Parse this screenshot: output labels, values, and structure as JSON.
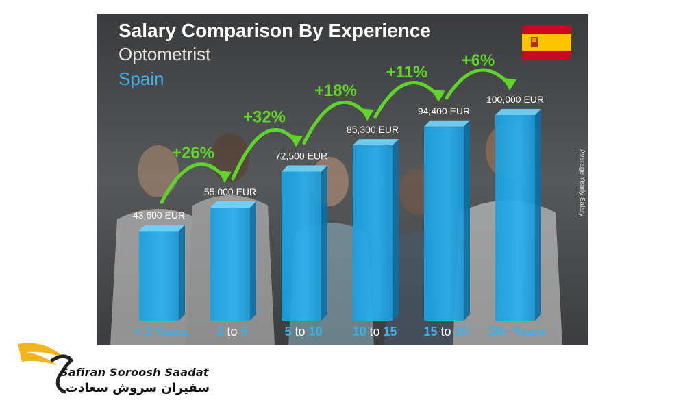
{
  "chart_data": {
    "type": "bar",
    "title": "Salary Comparison By Experience",
    "subtitle": "Optometrist",
    "subtitle2": "Spain",
    "ylabel": "Average Yearly Salary",
    "categories": [
      "< 2 Years",
      "2 to 5",
      "5 to 10",
      "10 to 15",
      "15 to 20",
      "20+ Years"
    ],
    "values": [
      43600,
      55000,
      72500,
      85300,
      94400,
      100000
    ],
    "value_labels": [
      "43,600 EUR",
      "55,000 EUR",
      "72,500 EUR",
      "85,300 EUR",
      "94,400 EUR",
      "100,000 EUR"
    ],
    "increase_labels": [
      "+26%",
      "+32%",
      "+18%",
      "+11%",
      "+6%"
    ],
    "ylim": [
      0,
      100000
    ],
    "unit": "EUR",
    "legend": "none",
    "grid": false
  },
  "colors": {
    "bar": "#1ea6e6",
    "bar_side": "#0d6fa3",
    "bar_top": "#6fd0f5",
    "arrow": "#5fd42a",
    "title": "#ffffff",
    "subtitle": "#e6e6e6",
    "country": "#3cb0ea",
    "background": "#4a4b4c"
  },
  "logo": {
    "name_en": "Safiran Soroosh Saadat",
    "name_fa": "سفیران سروش سعادت",
    "icon": "winged-swan-icon"
  },
  "flag": {
    "icon": "spain-flag-icon"
  }
}
